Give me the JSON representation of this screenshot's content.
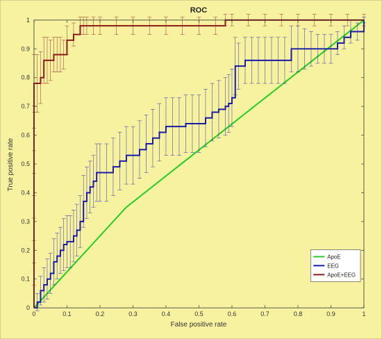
{
  "chart_data": {
    "type": "line",
    "title": "ROC",
    "xlabel": "False positive rate",
    "ylabel": "True positive rate",
    "xlim": [
      0,
      1
    ],
    "ylim": [
      0,
      1
    ],
    "xticks": [
      "0",
      "0.1",
      "0.2",
      "0.3",
      "0.4",
      "0.5",
      "0.6",
      "0.7",
      "0.8",
      "0.9",
      "1"
    ],
    "yticks": [
      "0",
      "0.1",
      "0.2",
      "0.3",
      "0.4",
      "0.5",
      "0.6",
      "0.7",
      "0.8",
      "0.9",
      "1"
    ],
    "grid": false,
    "legend_position": "bottom-right",
    "series": [
      {
        "name": "ApoE",
        "color": "#22cc22",
        "style": "line",
        "x": [
          0,
          0.28,
          1
        ],
        "y": [
          0,
          0.35,
          1
        ]
      },
      {
        "name": "EEG",
        "color": "#1a1aaa",
        "style": "step",
        "x": [
          0,
          0.01,
          0.02,
          0.03,
          0.04,
          0.05,
          0.06,
          0.07,
          0.08,
          0.09,
          0.1,
          0.11,
          0.12,
          0.13,
          0.14,
          0.15,
          0.16,
          0.17,
          0.18,
          0.19,
          0.2,
          0.22,
          0.24,
          0.26,
          0.28,
          0.3,
          0.32,
          0.34,
          0.36,
          0.38,
          0.4,
          0.42,
          0.44,
          0.46,
          0.48,
          0.5,
          0.52,
          0.54,
          0.56,
          0.58,
          0.59,
          0.6,
          0.61,
          0.62,
          0.64,
          0.66,
          0.68,
          0.7,
          0.72,
          0.74,
          0.76,
          0.78,
          0.8,
          0.82,
          0.84,
          0.86,
          0.88,
          0.9,
          0.92,
          0.94,
          0.96,
          0.98,
          1.0
        ],
        "y": [
          0,
          0.02,
          0.06,
          0.08,
          0.1,
          0.12,
          0.16,
          0.18,
          0.2,
          0.22,
          0.23,
          0.23,
          0.25,
          0.27,
          0.3,
          0.37,
          0.4,
          0.42,
          0.44,
          0.47,
          0.47,
          0.47,
          0.49,
          0.51,
          0.53,
          0.53,
          0.55,
          0.57,
          0.59,
          0.61,
          0.63,
          0.63,
          0.63,
          0.64,
          0.64,
          0.64,
          0.66,
          0.68,
          0.69,
          0.7,
          0.71,
          0.73,
          0.84,
          0.84,
          0.86,
          0.86,
          0.86,
          0.86,
          0.86,
          0.86,
          0.86,
          0.9,
          0.9,
          0.9,
          0.9,
          0.9,
          0.9,
          0.9,
          0.92,
          0.94,
          0.96,
          0.96,
          1.0
        ],
        "err": [
          0,
          0.03,
          0.05,
          0.06,
          0.07,
          0.07,
          0.08,
          0.08,
          0.08,
          0.09,
          0.09,
          0.09,
          0.09,
          0.09,
          0.09,
          0.09,
          0.09,
          0.09,
          0.09,
          0.1,
          0.1,
          0.1,
          0.1,
          0.1,
          0.1,
          0.1,
          0.1,
          0.1,
          0.1,
          0.1,
          0.1,
          0.1,
          0.1,
          0.1,
          0.1,
          0.1,
          0.1,
          0.1,
          0.1,
          0.1,
          0.1,
          0.1,
          0.1,
          0.08,
          0.08,
          0.08,
          0.08,
          0.08,
          0.08,
          0.08,
          0.08,
          0.08,
          0.08,
          0.07,
          0.06,
          0.05,
          0.05,
          0.05,
          0.04,
          0.04,
          0.04,
          0.03,
          0.01
        ]
      },
      {
        "name": "ApoE+EEG",
        "color": "#8b1a1a",
        "style": "step",
        "x": [
          0,
          0.01,
          0.02,
          0.03,
          0.04,
          0.05,
          0.06,
          0.07,
          0.08,
          0.09,
          0.1,
          0.12,
          0.14,
          0.15,
          0.16,
          0.18,
          0.2,
          0.25,
          0.3,
          0.35,
          0.4,
          0.45,
          0.5,
          0.55,
          0.58,
          0.6,
          0.65,
          0.7,
          0.75,
          0.8,
          0.85,
          0.9,
          0.95,
          1.0
        ],
        "y": [
          0.78,
          0.78,
          0.8,
          0.86,
          0.86,
          0.86,
          0.88,
          0.88,
          0.88,
          0.88,
          0.93,
          0.95,
          0.98,
          0.98,
          0.98,
          0.98,
          0.98,
          0.98,
          0.98,
          0.98,
          0.98,
          0.98,
          0.98,
          0.98,
          1.0,
          1.0,
          1.0,
          1.0,
          1.0,
          1.0,
          1.0,
          1.0,
          1.0,
          1.0
        ],
        "vertical_start": {
          "x": 0,
          "y_from": 0,
          "y_to": 0.78
        },
        "err": [
          0.1,
          0.1,
          0.09,
          0.08,
          0.08,
          0.07,
          0.06,
          0.06,
          0.06,
          0.05,
          0.05,
          0.04,
          0.03,
          0.03,
          0.03,
          0.03,
          0.03,
          0.03,
          0.03,
          0.03,
          0.03,
          0.03,
          0.03,
          0.03,
          0.02,
          0.02,
          0.02,
          0.02,
          0.02,
          0.02,
          0.02,
          0.02,
          0.02,
          0.02
        ]
      }
    ]
  },
  "colors": {
    "background": "#f7f2a0",
    "axis": "#333333"
  }
}
